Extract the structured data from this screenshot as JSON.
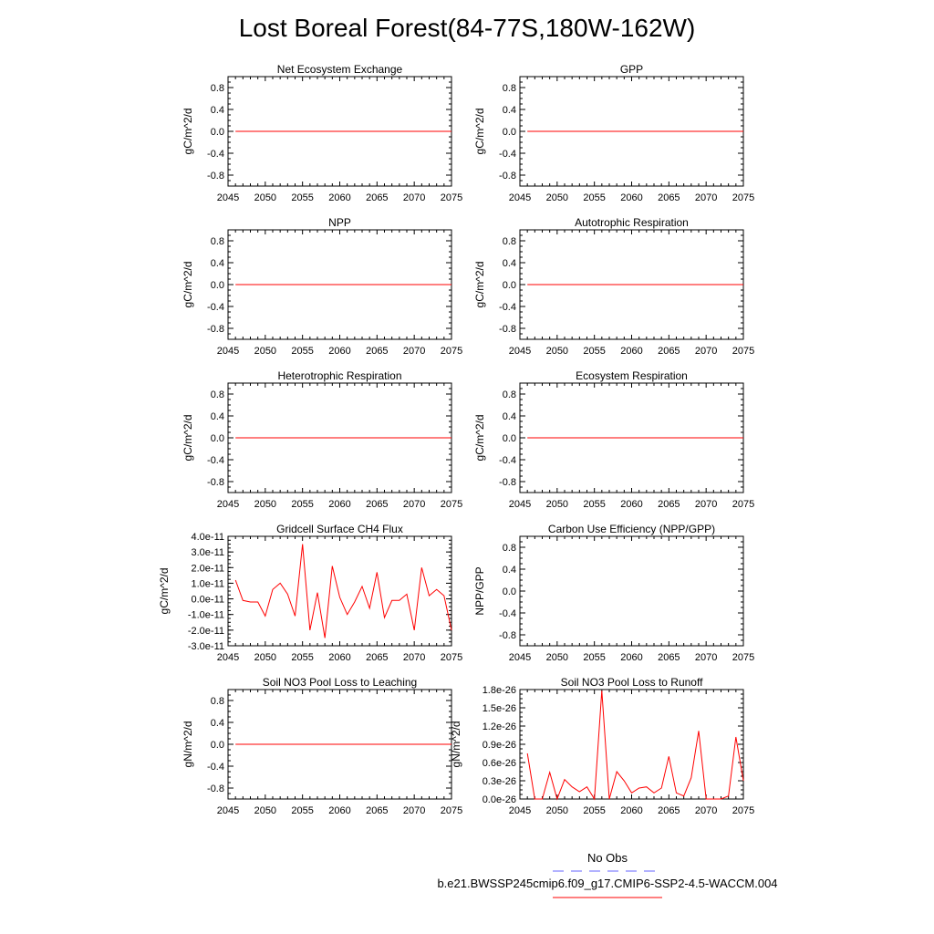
{
  "figure": {
    "title": "Lost Boreal Forest(84-77S,180W-162W)"
  },
  "colors": {
    "series": "#ff0000",
    "obs": "#6666ff",
    "frame": "#000000"
  },
  "legend": {
    "obs_label": "No Obs",
    "model_label": "b.e21.BWSSP245cmip6.f09_g17.CMIP6-SSP2-4.5-WACCM.004"
  },
  "chart_data": [
    {
      "type": "line",
      "title": "Net Ecosystem Exchange",
      "ylabel": "gC/m^2/d",
      "xlim": [
        2045,
        2075
      ],
      "ylim": [
        -1,
        1
      ],
      "xticks": [
        2045,
        2050,
        2055,
        2060,
        2065,
        2070,
        2075
      ],
      "yticks": [
        -0.8,
        -0.4,
        0.0,
        0.4,
        0.8
      ],
      "ytick_labels": [
        "-0.8",
        "-0.4",
        "0.0",
        "0.4",
        "0.8"
      ],
      "x": [
        2046,
        2075
      ],
      "values": [
        0,
        0
      ]
    },
    {
      "type": "line",
      "title": "GPP",
      "ylabel": "gC/m^2/d",
      "xlim": [
        2045,
        2075
      ],
      "ylim": [
        -1,
        1
      ],
      "xticks": [
        2045,
        2050,
        2055,
        2060,
        2065,
        2070,
        2075
      ],
      "yticks": [
        -0.8,
        -0.4,
        0.0,
        0.4,
        0.8
      ],
      "ytick_labels": [
        "-0.8",
        "-0.4",
        "0.0",
        "0.4",
        "0.8"
      ],
      "x": [
        2046,
        2075
      ],
      "values": [
        0,
        0
      ]
    },
    {
      "type": "line",
      "title": "NPP",
      "ylabel": "gC/m^2/d",
      "xlim": [
        2045,
        2075
      ],
      "ylim": [
        -1,
        1
      ],
      "xticks": [
        2045,
        2050,
        2055,
        2060,
        2065,
        2070,
        2075
      ],
      "yticks": [
        -0.8,
        -0.4,
        0.0,
        0.4,
        0.8
      ],
      "ytick_labels": [
        "-0.8",
        "-0.4",
        "0.0",
        "0.4",
        "0.8"
      ],
      "x": [
        2046,
        2075
      ],
      "values": [
        0,
        0
      ]
    },
    {
      "type": "line",
      "title": "Autotrophic Respiration",
      "ylabel": "gC/m^2/d",
      "xlim": [
        2045,
        2075
      ],
      "ylim": [
        -1,
        1
      ],
      "xticks": [
        2045,
        2050,
        2055,
        2060,
        2065,
        2070,
        2075
      ],
      "yticks": [
        -0.8,
        -0.4,
        0.0,
        0.4,
        0.8
      ],
      "ytick_labels": [
        "-0.8",
        "-0.4",
        "0.0",
        "0.4",
        "0.8"
      ],
      "x": [
        2046,
        2075
      ],
      "values": [
        0,
        0
      ]
    },
    {
      "type": "line",
      "title": "Heterotrophic Respiration",
      "ylabel": "gC/m^2/d",
      "xlim": [
        2045,
        2075
      ],
      "ylim": [
        -1,
        1
      ],
      "xticks": [
        2045,
        2050,
        2055,
        2060,
        2065,
        2070,
        2075
      ],
      "yticks": [
        -0.8,
        -0.4,
        0.0,
        0.4,
        0.8
      ],
      "ytick_labels": [
        "-0.8",
        "-0.4",
        "0.0",
        "0.4",
        "0.8"
      ],
      "x": [
        2046,
        2075
      ],
      "values": [
        0,
        0
      ]
    },
    {
      "type": "line",
      "title": "Ecosystem Respiration",
      "ylabel": "gC/m^2/d",
      "xlim": [
        2045,
        2075
      ],
      "ylim": [
        -1,
        1
      ],
      "xticks": [
        2045,
        2050,
        2055,
        2060,
        2065,
        2070,
        2075
      ],
      "yticks": [
        -0.8,
        -0.4,
        0.0,
        0.4,
        0.8
      ],
      "ytick_labels": [
        "-0.8",
        "-0.4",
        "0.0",
        "0.4",
        "0.8"
      ],
      "x": [
        2046,
        2075
      ],
      "values": [
        0,
        0
      ]
    },
    {
      "type": "line",
      "title": "Gridcell Surface CH4 Flux",
      "ylabel": "gC/m^2/d",
      "xlim": [
        2045,
        2075
      ],
      "ylim": [
        -3e-11,
        4e-11
      ],
      "xticks": [
        2045,
        2050,
        2055,
        2060,
        2065,
        2070,
        2075
      ],
      "yticks": [
        -3e-11,
        -2e-11,
        -1e-11,
        0,
        1e-11,
        2e-11,
        3e-11,
        4e-11
      ],
      "ytick_labels": [
        "-3.0e-11",
        "-2.0e-11",
        "-1.0e-11",
        "0.0e-11",
        "1.0e-11",
        "2.0e-11",
        "3.0e-11",
        "4.0e-11"
      ],
      "x": [
        2046,
        2047,
        2048,
        2049,
        2050,
        2051,
        2052,
        2053,
        2054,
        2055,
        2056,
        2057,
        2058,
        2059,
        2060,
        2061,
        2062,
        2063,
        2064,
        2065,
        2066,
        2067,
        2068,
        2069,
        2070,
        2071,
        2072,
        2073,
        2074,
        2075
      ],
      "values": [
        1.2e-11,
        -1e-12,
        -2e-12,
        -2e-12,
        -1.1e-11,
        6e-12,
        1e-11,
        3e-12,
        -1.1e-11,
        3.5e-11,
        -2e-11,
        4e-12,
        -2.5e-11,
        2.1e-11,
        1e-12,
        -1e-11,
        -2e-12,
        8e-12,
        -6e-12,
        1.7e-11,
        -1.2e-11,
        -1e-12,
        -1e-12,
        3e-12,
        -2e-11,
        2e-11,
        2e-12,
        6e-12,
        2e-12,
        -2e-11
      ]
    },
    {
      "type": "line",
      "title": "Carbon Use Efficiency (NPP/GPP)",
      "ylabel": "NPP/GPP",
      "xlim": [
        2045,
        2075
      ],
      "ylim": [
        -1,
        1
      ],
      "xticks": [
        2045,
        2050,
        2055,
        2060,
        2065,
        2070,
        2075
      ],
      "yticks": [
        -0.8,
        -0.4,
        0.0,
        0.4,
        0.8
      ],
      "ytick_labels": [
        "-0.8",
        "-0.4",
        "0.0",
        "0.4",
        "0.8"
      ],
      "x": [],
      "values": []
    },
    {
      "type": "line",
      "title": "Soil NO3 Pool Loss to Leaching",
      "ylabel": "gN/m^2/d",
      "xlim": [
        2045,
        2075
      ],
      "ylim": [
        -1,
        1
      ],
      "xticks": [
        2045,
        2050,
        2055,
        2060,
        2065,
        2070,
        2075
      ],
      "yticks": [
        -0.8,
        -0.4,
        0.0,
        0.4,
        0.8
      ],
      "ytick_labels": [
        "-0.8",
        "-0.4",
        "0.0",
        "0.4",
        "0.8"
      ],
      "x": [
        2046,
        2075
      ],
      "values": [
        0,
        0
      ]
    },
    {
      "type": "line",
      "title": "Soil NO3 Pool Loss to Runoff",
      "ylabel": "gN/m^2/d",
      "xlim": [
        2045,
        2075
      ],
      "ylim": [
        0,
        1.8e-26
      ],
      "xticks": [
        2045,
        2050,
        2055,
        2060,
        2065,
        2070,
        2075
      ],
      "yticks": [
        0,
        3e-27,
        6e-27,
        9e-27,
        1.2e-26,
        1.5e-26,
        1.8e-26
      ],
      "ytick_labels": [
        "0.0e-26",
        "0.3e-26",
        "0.6e-26",
        "0.9e-26",
        "1.2e-26",
        "1.5e-26",
        "1.8e-26"
      ],
      "x": [
        2046,
        2047,
        2048,
        2049,
        2050,
        2051,
        2052,
        2053,
        2054,
        2055,
        2056,
        2057,
        2058,
        2059,
        2060,
        2061,
        2062,
        2063,
        2064,
        2065,
        2066,
        2067,
        2068,
        2069,
        2070,
        2071,
        2072,
        2073,
        2074,
        2075
      ],
      "values": [
        7.5e-27,
        0,
        0,
        4.4e-27,
        0,
        3.2e-27,
        2e-27,
        1.2e-27,
        2e-27,
        0,
        1.78e-26,
        0,
        4.5e-27,
        3e-27,
        1e-27,
        1.8e-27,
        2e-27,
        1e-27,
        1.8e-27,
        7e-27,
        1e-27,
        5e-28,
        3.5e-27,
        1.12e-26,
        0,
        0,
        0,
        5e-28,
        1.02e-26,
        3e-27
      ]
    }
  ]
}
